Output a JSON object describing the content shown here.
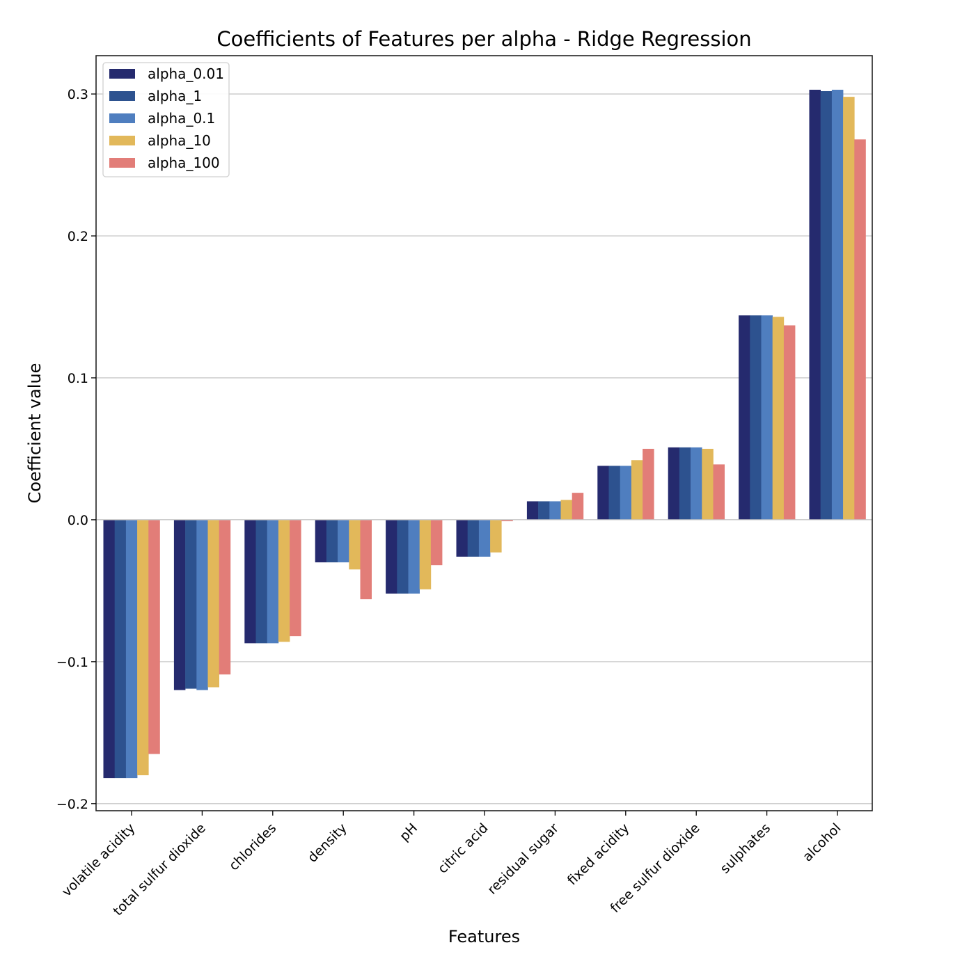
{
  "chart_data": {
    "type": "bar",
    "title": "Coefficients of Features per alpha - Ridge Regression",
    "xlabel": "Features",
    "ylabel": "Coefficient value",
    "ylim": [
      -0.205,
      0.327
    ],
    "yticks": [
      -0.2,
      -0.1,
      0.0,
      0.1,
      0.2,
      0.3
    ],
    "ytick_labels": [
      "−0.2",
      "−0.1",
      "0.0",
      "0.1",
      "0.2",
      "0.3"
    ],
    "grid": "y",
    "legend_position": "top-left",
    "categories": [
      "volatile acidity",
      "total sulfur dioxide",
      "chlorides",
      "density",
      "pH",
      "citric acid",
      "residual sugar",
      "fixed acidity",
      "free sulfur dioxide",
      "sulphates",
      "alcohol"
    ],
    "series": [
      {
        "name": "alpha_0.01",
        "color": "#252a6e",
        "values": [
          -0.182,
          -0.12,
          -0.087,
          -0.03,
          -0.052,
          -0.026,
          0.013,
          0.038,
          0.051,
          0.144,
          0.303
        ]
      },
      {
        "name": "alpha_1",
        "color": "#2d528f",
        "values": [
          -0.182,
          -0.119,
          -0.087,
          -0.03,
          -0.052,
          -0.026,
          0.013,
          0.038,
          0.051,
          0.144,
          0.302
        ]
      },
      {
        "name": "alpha_0.1",
        "color": "#4f7ebf",
        "values": [
          -0.182,
          -0.12,
          -0.087,
          -0.03,
          -0.052,
          -0.026,
          0.013,
          0.038,
          0.051,
          0.144,
          0.303
        ]
      },
      {
        "name": "alpha_10",
        "color": "#e2b85a",
        "values": [
          -0.18,
          -0.118,
          -0.086,
          -0.035,
          -0.049,
          -0.023,
          0.014,
          0.042,
          0.05,
          0.143,
          0.298
        ]
      },
      {
        "name": "alpha_100",
        "color": "#e27d78",
        "values": [
          -0.165,
          -0.109,
          -0.082,
          -0.056,
          -0.032,
          -0.001,
          0.019,
          0.05,
          0.039,
          0.137,
          0.268
        ]
      }
    ]
  }
}
